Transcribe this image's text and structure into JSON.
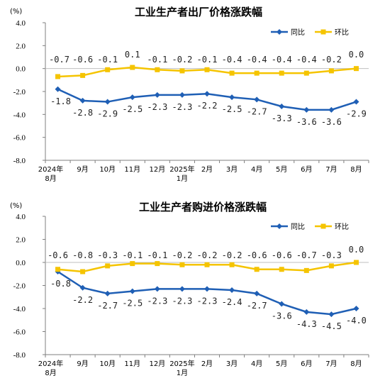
{
  "chart_data": [
    {
      "type": "line",
      "title": "工业生产者出厂价格涨跌幅",
      "unit": "(%)",
      "categories": [
        [
          "2024年",
          "8月"
        ],
        [
          "9月"
        ],
        [
          "10月"
        ],
        [
          "11月"
        ],
        [
          "12月"
        ],
        [
          "2025年",
          "1月"
        ],
        [
          "2月"
        ],
        [
          "3月"
        ],
        [
          "4月"
        ],
        [
          "5月"
        ],
        [
          "6月"
        ],
        [
          "7月"
        ],
        [
          "8月"
        ]
      ],
      "ylim": [
        -8.0,
        4.0
      ],
      "yticks": [
        "4.0",
        "2.0",
        "0.0",
        "-2.0",
        "-4.0",
        "-6.0",
        "-8.0"
      ],
      "series": [
        {
          "name": "同比",
          "color": "#1f5fb5",
          "values": [
            -1.8,
            -2.8,
            -2.9,
            -2.5,
            -2.3,
            -2.3,
            -2.2,
            -2.5,
            -2.7,
            -3.3,
            -3.6,
            -3.6,
            -2.9
          ],
          "labels": [
            "-1.8",
            "-2.8",
            "-2.9",
            "-2.5",
            "-2.3",
            "-2.3",
            "-2.2",
            "-2.5",
            "-2.7",
            "-3.3",
            "-3.6",
            "-3.6",
            "-2.9"
          ]
        },
        {
          "name": "环比",
          "color": "#f5c400",
          "values": [
            -0.7,
            -0.6,
            -0.1,
            0.1,
            -0.1,
            -0.2,
            -0.1,
            -0.4,
            -0.4,
            -0.4,
            -0.4,
            -0.2,
            0.0
          ],
          "labels": [
            "-0.7",
            "-0.6",
            "-0.1",
            "0.1",
            "-0.1",
            "-0.2",
            "-0.1",
            "-0.4",
            "-0.4",
            "-0.4",
            "-0.4",
            "-0.2",
            "0.0"
          ]
        }
      ],
      "legend": "top-right",
      "grid": false
    },
    {
      "type": "line",
      "title": "工业生产者购进价格涨跌幅",
      "unit": "(%)",
      "categories": [
        [
          "2024年",
          "8月"
        ],
        [
          "9月"
        ],
        [
          "10月"
        ],
        [
          "11月"
        ],
        [
          "12月"
        ],
        [
          "2025年",
          "1月"
        ],
        [
          "2月"
        ],
        [
          "3月"
        ],
        [
          "4月"
        ],
        [
          "5月"
        ],
        [
          "6月"
        ],
        [
          "7月"
        ],
        [
          "8月"
        ]
      ],
      "ylim": [
        -8.0,
        4.0
      ],
      "yticks": [
        "4.0",
        "2.0",
        "0.0",
        "-2.0",
        "-4.0",
        "-6.0",
        "-8.0"
      ],
      "series": [
        {
          "name": "同比",
          "color": "#1f5fb5",
          "values": [
            -0.8,
            -2.2,
            -2.7,
            -2.5,
            -2.3,
            -2.3,
            -2.3,
            -2.4,
            -2.7,
            -3.6,
            -4.3,
            -4.5,
            -4.0
          ],
          "labels": [
            "-0.8",
            "-2.2",
            "-2.7",
            "-2.5",
            "-2.3",
            "-2.3",
            "-2.3",
            "-2.4",
            "-2.7",
            "-3.6",
            "-4.3",
            "-4.5",
            "-4.0"
          ]
        },
        {
          "name": "环比",
          "color": "#f5c400",
          "values": [
            -0.6,
            -0.8,
            -0.3,
            -0.1,
            -0.1,
            -0.2,
            -0.2,
            -0.2,
            -0.6,
            -0.6,
            -0.7,
            -0.3,
            0.0
          ],
          "labels": [
            "-0.6",
            "-0.8",
            "-0.3",
            "-0.1",
            "-0.1",
            "-0.2",
            "-0.2",
            "-0.2",
            "-0.6",
            "-0.6",
            "-0.7",
            "-0.3",
            "0.0"
          ]
        }
      ],
      "legend": "top-right",
      "grid": false
    }
  ]
}
